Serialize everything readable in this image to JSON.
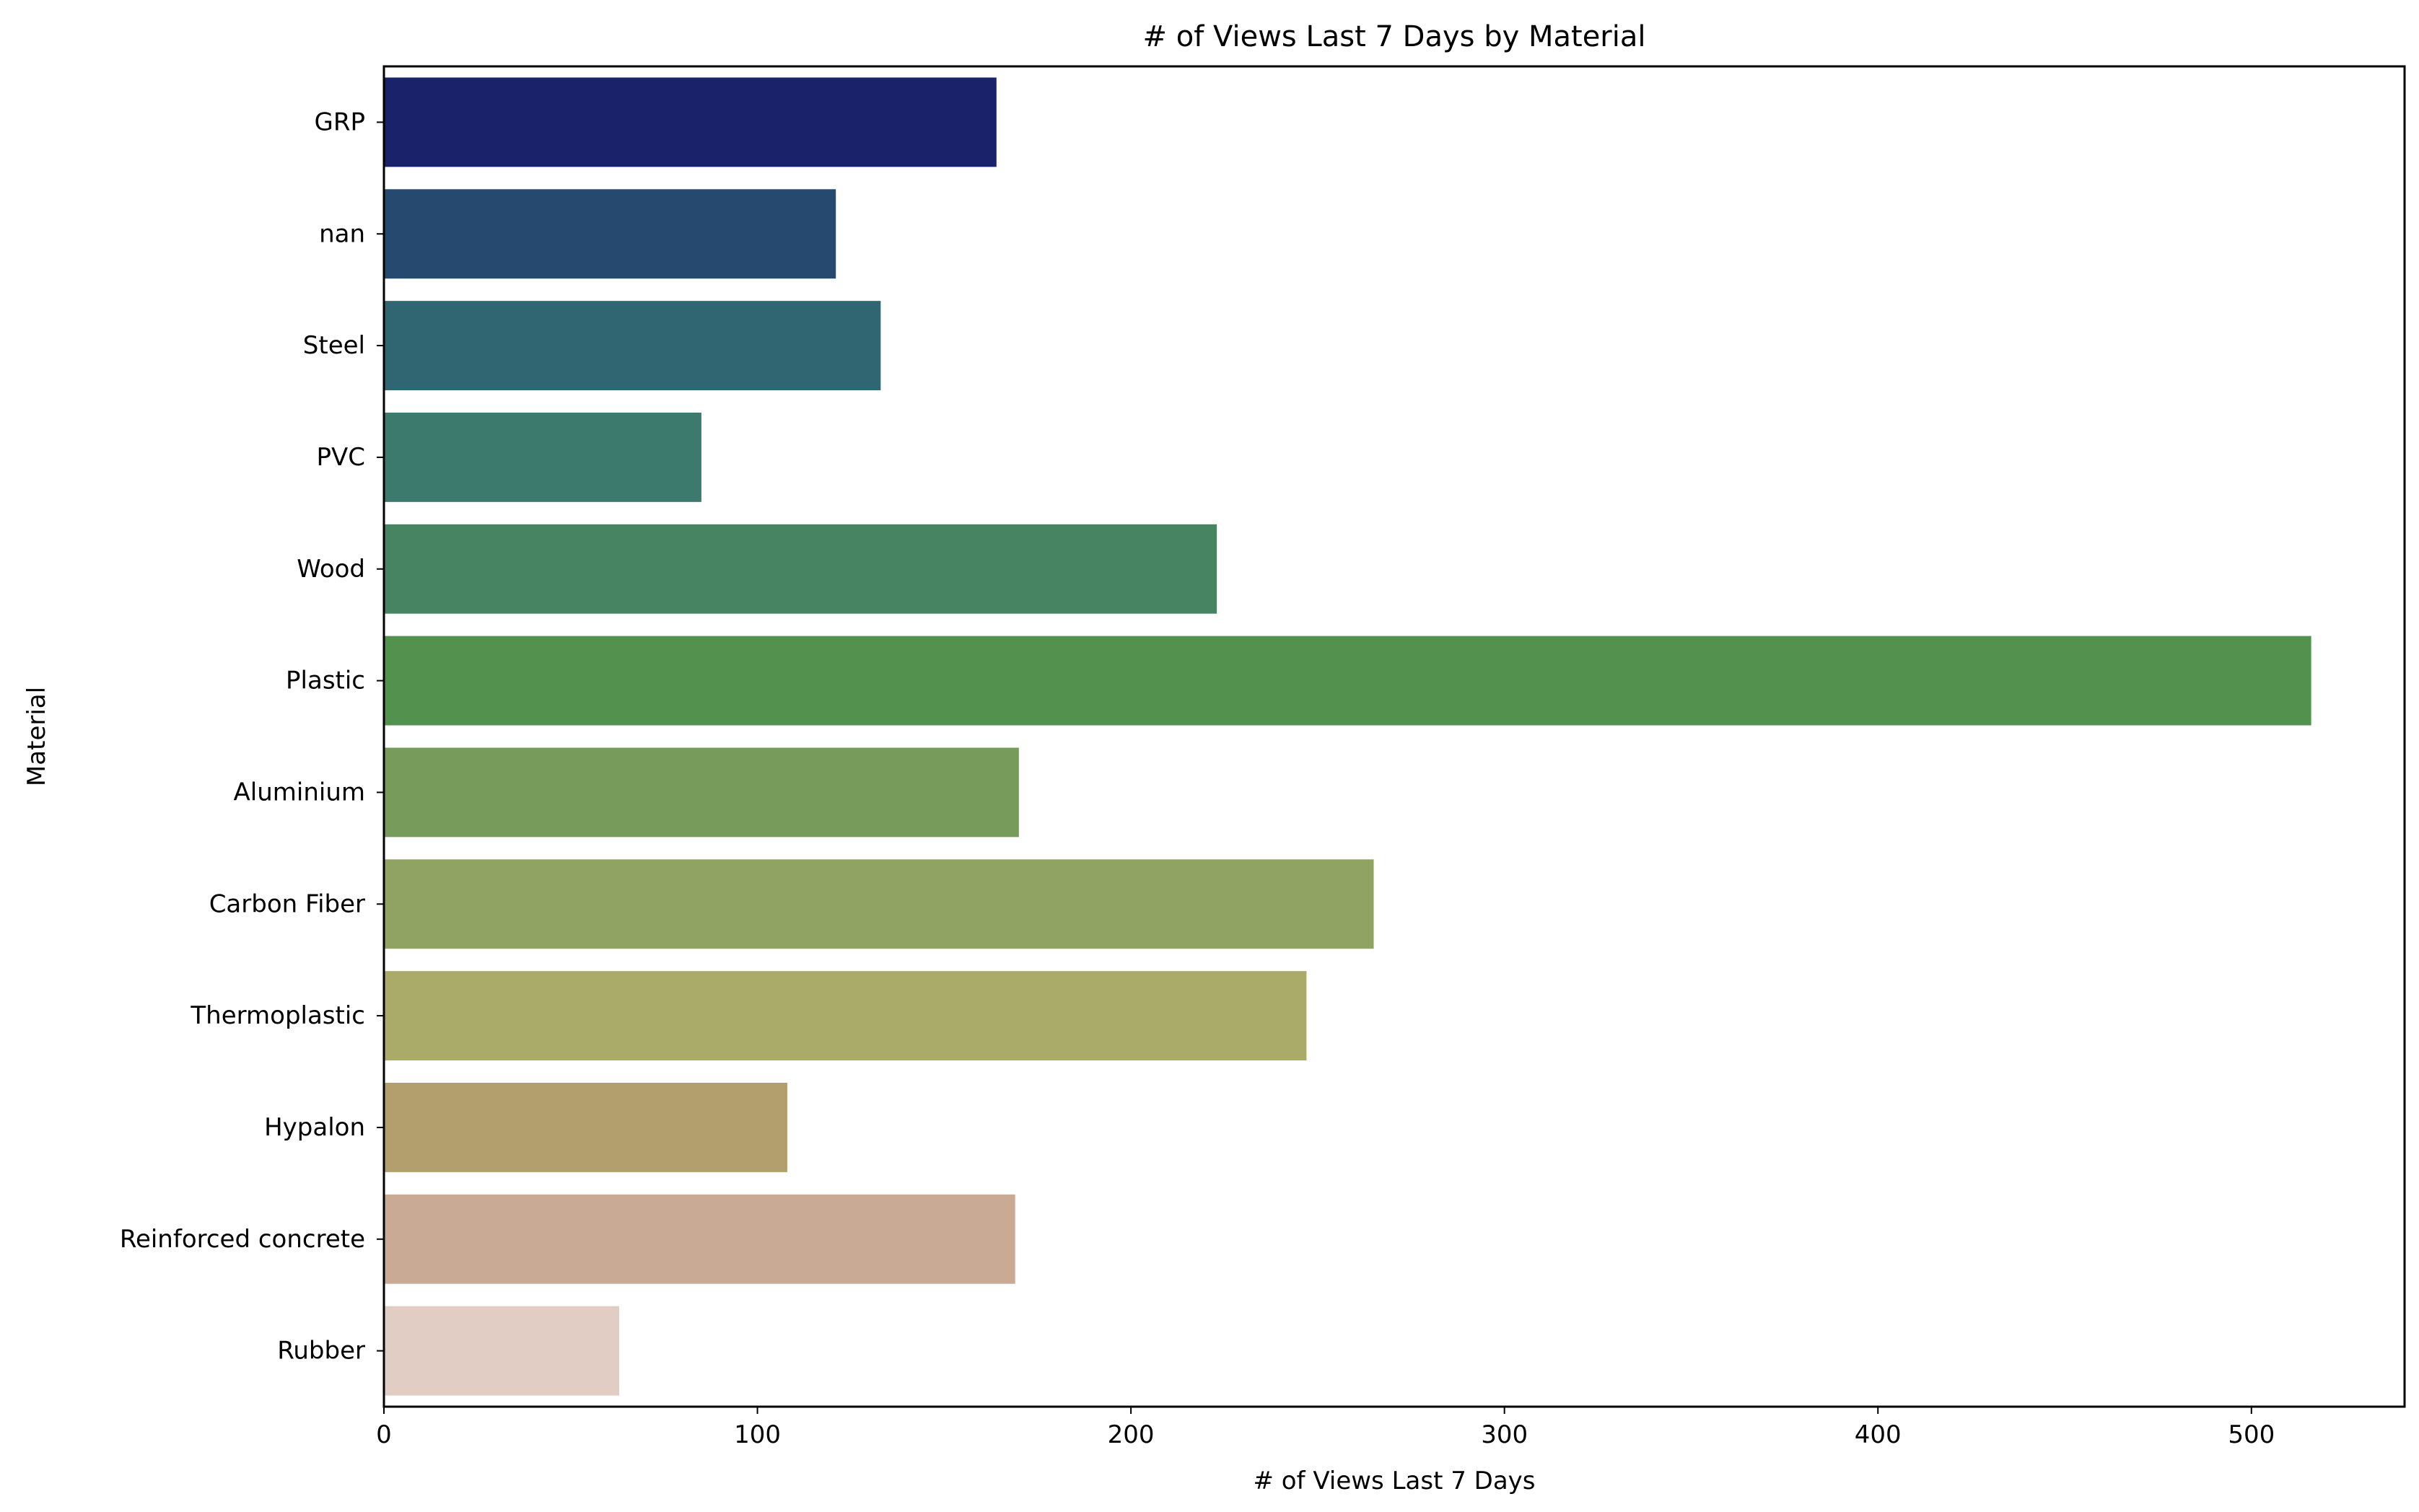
{
  "chart_data": {
    "type": "bar",
    "orientation": "horizontal",
    "title": "# of Views Last 7 Days by Material",
    "xlabel": "# of Views Last 7 Days",
    "ylabel": "Material",
    "xlim": [
      0,
      541
    ],
    "xticks": [
      "0",
      "100",
      "200",
      "300",
      "400",
      "500"
    ],
    "grid": false,
    "categories": [
      "GRP",
      "nan",
      "Steel",
      "PVC",
      "Wood",
      "Plastic",
      "Aluminium",
      "Carbon Fiber",
      "Thermoplastic",
      "Hypalon",
      "Reinforced concrete",
      "Rubber"
    ],
    "values": [
      164,
      121,
      133,
      85,
      223,
      516,
      170,
      265,
      247,
      108,
      169,
      63
    ],
    "colors": [
      "#1a226a",
      "#264a6f",
      "#306672",
      "#3d7a6e",
      "#478562",
      "#53914f",
      "#779b5b",
      "#91a363",
      "#aaaa69",
      "#b39f6d",
      "#c9aa94",
      "#e2cdc5"
    ]
  }
}
